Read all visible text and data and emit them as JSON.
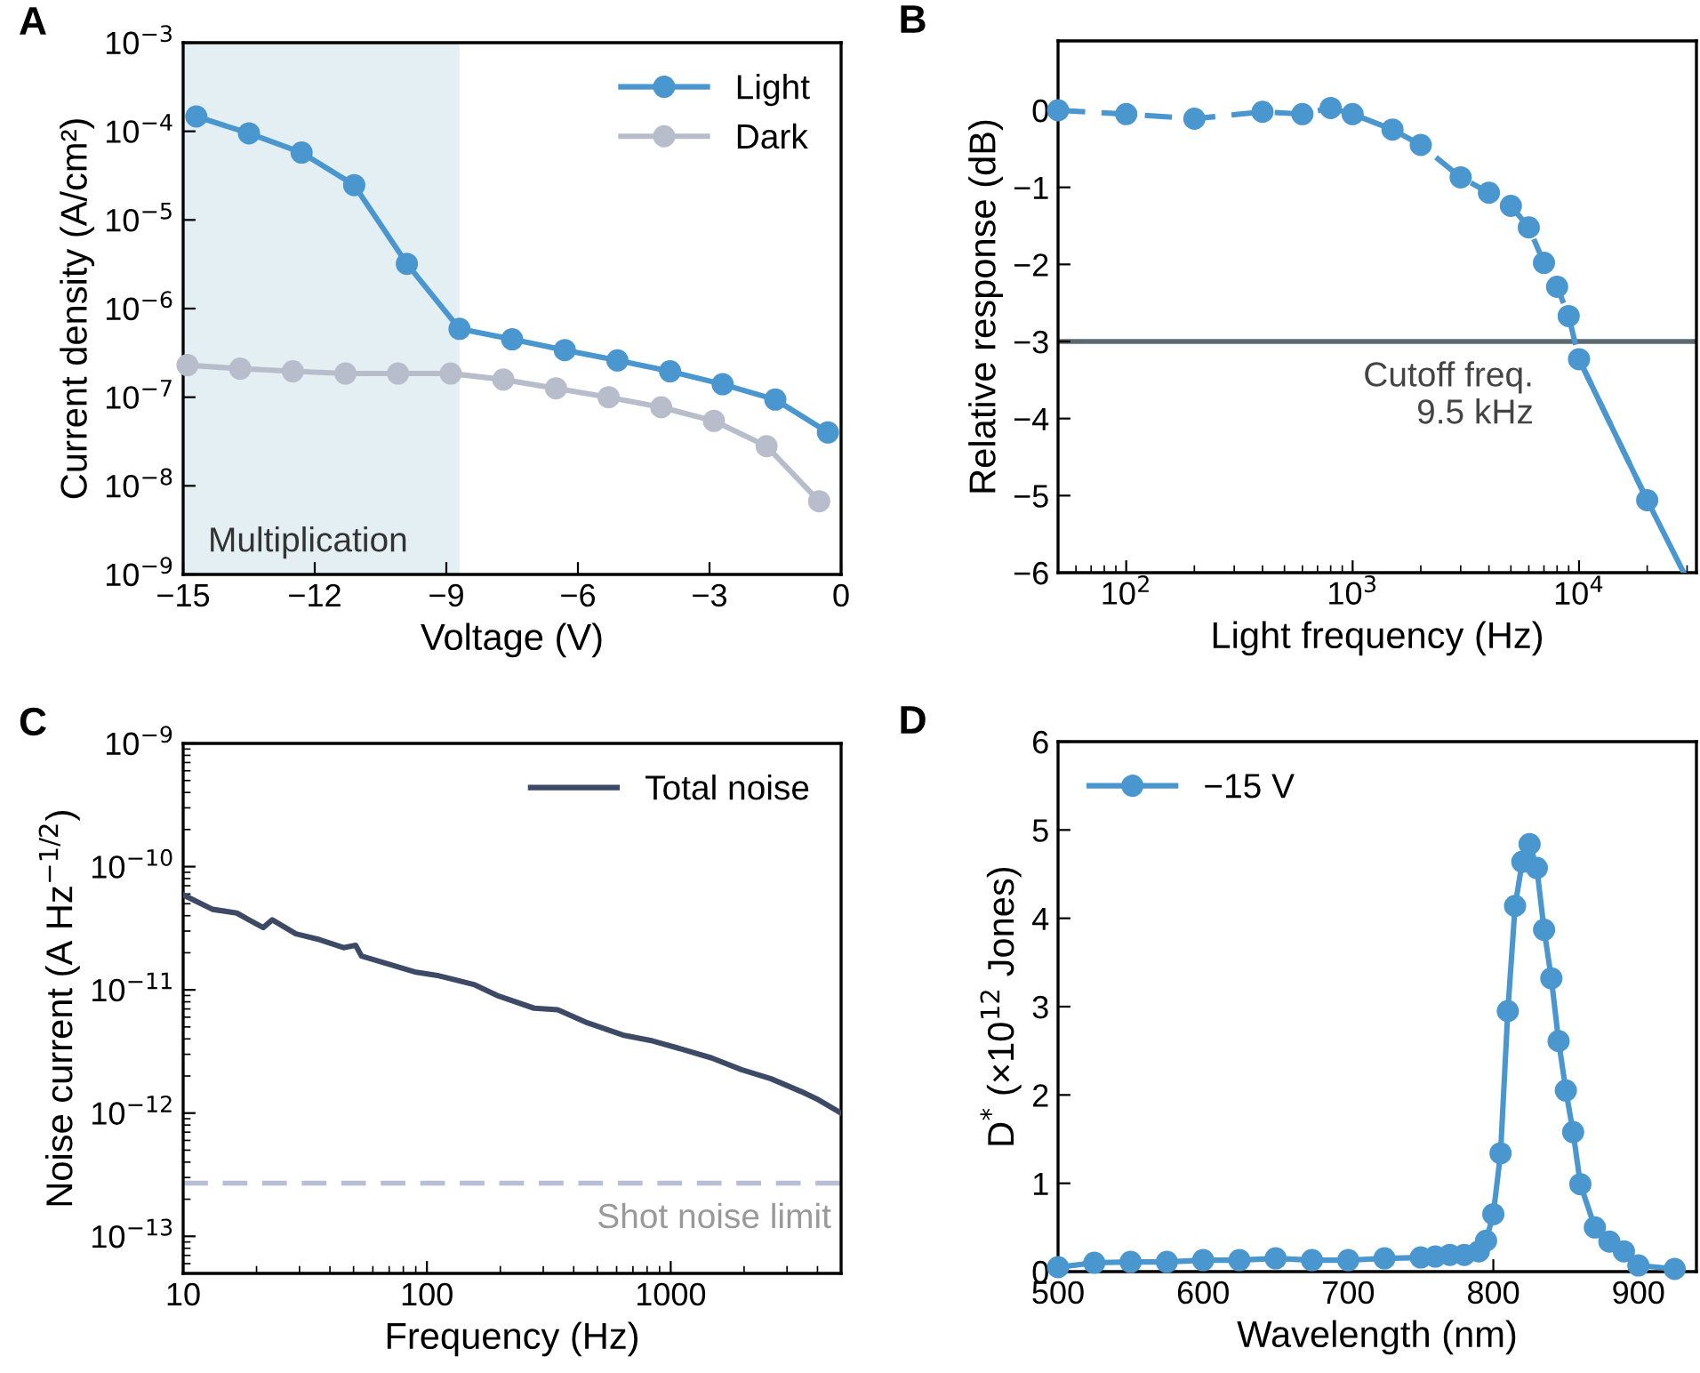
{
  "chart_data": [
    {
      "type": "line",
      "annotations": [
        "A"
      ],
      "xlabel": "Voltage (V)",
      "ylabel": "Current density (A/cm²)",
      "log": "y",
      "marker": "circle",
      "legend": "top right",
      "xlim": [
        -15,
        0
      ],
      "xticks": [
        {
          "value": -15,
          "label": "−15"
        },
        {
          "value": -12,
          "label": "−12"
        },
        {
          "value": -9,
          "label": "−9"
        },
        {
          "value": -6,
          "label": "−6"
        },
        {
          "value": -3,
          "label": "−3"
        },
        {
          "value": 0,
          "label": "0"
        }
      ],
      "ylim": [
        1e-09,
        0.001
      ],
      "yticks": [
        {
          "value": 1e-09,
          "label": "10$^{−9}$"
        },
        {
          "value": 1e-08,
          "label": "10$^{−8}$"
        },
        {
          "value": 1e-07,
          "label": "10$^{−7}$"
        },
        {
          "value": 1e-06,
          "label": "10$^{−6}$"
        },
        {
          "value": 1e-05,
          "label": "10$^{−5}$"
        },
        {
          "value": 0.0001,
          "label": "10$^{−4}$"
        },
        {
          "value": 0.001,
          "label": "10$^{−3}$"
        }
      ],
      "bands": [
        {
          "axis": "x",
          "from": -15,
          "to": -8.7,
          "label": "Multiplication",
          "color": "#e3eff2"
        }
      ],
      "series": [
        {
          "name": "Light",
          "color": "#4a97d0",
          "x": [
            -14.7,
            -13.5,
            -12.3,
            -11.1,
            -9.9,
            -8.7,
            -7.5,
            -6.3,
            -5.1,
            -3.9,
            -2.7,
            -1.5,
            -0.3
          ],
          "values": [
            0.000147,
            9.5e-05,
            5.75e-05,
            2.47e-05,
            3.2e-06,
            5.9e-07,
            4.5e-07,
            3.4e-07,
            2.6e-07,
            1.96e-07,
            1.4e-07,
            9.4e-08,
            4e-08
          ]
        },
        {
          "name": "Dark",
          "color": "#b8bdcc",
          "x": [
            -14.9,
            -13.7,
            -12.5,
            -11.3,
            -10.1,
            -8.9,
            -7.7,
            -6.5,
            -5.3,
            -4.1,
            -2.9,
            -1.7,
            -0.5
          ],
          "values": [
            2.3e-07,
            2.1e-07,
            1.96e-07,
            1.85e-07,
            1.85e-07,
            1.85e-07,
            1.58e-07,
            1.26e-07,
            1e-07,
            7.7e-08,
            5.4e-08,
            2.8e-08,
            6.7e-09
          ]
        }
      ]
    },
    {
      "type": "line",
      "annotations": [
        "B"
      ],
      "xlabel": "Light frequency (Hz)",
      "ylabel": "Relative response (dB)",
      "log": "x",
      "xlim": [
        50,
        33000
      ],
      "xticks": [
        {
          "value": 100,
          "label": "10$^{2}$"
        },
        {
          "value": 1000,
          "label": "10$^{3}$"
        },
        {
          "value": 10000,
          "label": "10$^{4}$"
        }
      ],
      "ylim": [
        -6,
        0.9
      ],
      "yticks": [
        {
          "value": -6,
          "label": "−6"
        },
        {
          "value": -5,
          "label": "−5"
        },
        {
          "value": -4,
          "label": "−4"
        },
        {
          "value": -3,
          "label": "−3"
        },
        {
          "value": -2,
          "label": "−2"
        },
        {
          "value": -1,
          "label": "−1"
        },
        0
      ],
      "ref_lines": [
        {
          "axis": "y",
          "value": -3,
          "label": "Cutoff freq.\n9.5 kHz",
          "color": "#5b6a72"
        }
      ],
      "series": [
        {
          "color": "#4a97d0",
          "marker": "circle",
          "line_style": "dashed",
          "x": [
            50,
            100,
            200,
            400,
            600,
            800,
            1000,
            1500,
            2000,
            3000,
            4000,
            5000,
            6000,
            7000,
            8000,
            9000,
            10000,
            20000
          ],
          "values": [
            0,
            -0.05,
            -0.11,
            -0.02,
            -0.05,
            0.03,
            -0.05,
            -0.25,
            -0.45,
            -0.87,
            -1.07,
            -1.24,
            -1.52,
            -1.98,
            -2.29,
            -2.67,
            -3.23,
            -5.06
          ]
        },
        {
          "color": "#4a97d0",
          "marker": "none",
          "line_style": "solid",
          "x": [
            10000,
            20000,
            29000
          ],
          "values": [
            -3.23,
            -5.06,
            -6
          ]
        }
      ]
    },
    {
      "type": "line",
      "annotations": [
        "C"
      ],
      "xlabel": "Frequency (Hz)",
      "ylabel": "Noise current (A Hz$^{−1/2}$)",
      "log": "xy",
      "marker": "none",
      "legend": "top right",
      "xlim": [
        10,
        5000
      ],
      "xticks": [
        10,
        100,
        1000
      ],
      "ylim": [
        5e-14,
        1e-09
      ],
      "yticks": [
        {
          "value": 1e-13,
          "label": "10$^{−13}$"
        },
        {
          "value": 1e-12,
          "label": "10$^{−12}$"
        },
        {
          "value": 1e-11,
          "label": "10$^{−11}$"
        },
        {
          "value": 1e-10,
          "label": "10$^{−10}$"
        },
        {
          "value": 1e-09,
          "label": "10$^{−9}$"
        }
      ],
      "ref_lines": [
        {
          "axis": "y",
          "value": 2.7e-13,
          "label": "Shot noise limit",
          "color": "#b8bfd4",
          "line_style": "dashed"
        }
      ],
      "series": [
        {
          "name": "Total noise",
          "color": "#3d4a66",
          "x": [
            10,
            13.2,
            16.6,
            18.6,
            21.3,
            23.2,
            29,
            36.4,
            45.5,
            51,
            53.9,
            71,
            89,
            112,
            157,
            197,
            275,
            344,
            455,
            636,
            843,
            1112,
            1473,
            1950,
            2580,
            3420,
            4040,
            5000
          ],
          "values": [
            5.9e-11,
            4.5e-11,
            4.2e-11,
            3.7e-11,
            3.2e-11,
            3.7e-11,
            2.85e-11,
            2.55e-11,
            2.2e-11,
            2.3e-11,
            1.88e-11,
            1.6e-11,
            1.4e-11,
            1.3e-11,
            1.1e-11,
            8.9e-12,
            7.1e-12,
            6.9e-12,
            5.4e-12,
            4.3e-12,
            3.85e-12,
            3.3e-12,
            2.8e-12,
            2.25e-12,
            1.9e-12,
            1.5e-12,
            1.28e-12,
            1e-12
          ]
        }
      ]
    },
    {
      "type": "line",
      "annotations": [
        "D"
      ],
      "xlabel": "Wavelength (nm)",
      "ylabel": "D$^{*}$ (×10$^{12}$ Jones)",
      "marker": "circle",
      "legend": "top left",
      "xlim": [
        500,
        940
      ],
      "xticks": [
        500,
        600,
        700,
        800,
        900
      ],
      "ylim": [
        0,
        6
      ],
      "yticks": [
        0,
        1,
        2,
        3,
        4,
        5,
        6
      ],
      "series": [
        {
          "name": "−15 V",
          "color": "#4a97d0",
          "x": [
            500,
            525,
            550,
            575,
            600,
            625,
            650,
            675,
            700,
            725,
            750,
            760,
            770,
            780,
            790,
            795,
            800,
            805,
            810,
            815,
            820,
            825,
            830,
            835,
            840,
            845,
            850,
            855,
            860,
            870,
            880,
            890,
            900,
            925
          ],
          "values": [
            0.05,
            0.1,
            0.11,
            0.11,
            0.13,
            0.13,
            0.15,
            0.13,
            0.13,
            0.15,
            0.16,
            0.17,
            0.19,
            0.19,
            0.23,
            0.35,
            0.65,
            1.34,
            2.95,
            4.14,
            4.64,
            4.84,
            4.57,
            3.87,
            3.32,
            2.61,
            2.05,
            1.58,
            0.99,
            0.5,
            0.34,
            0.23,
            0.07,
            0.03
          ]
        }
      ]
    }
  ]
}
